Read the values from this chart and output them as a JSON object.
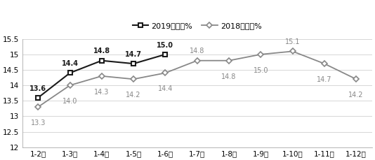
{
  "categories": [
    "1-2月",
    "1-3月",
    "1-4月",
    "1-5月",
    "1-6月",
    "1-7月",
    "1-8月",
    "1-9月",
    "1-10月",
    "1-11月",
    "1-12月"
  ],
  "series_2019": [
    13.6,
    14.4,
    14.8,
    14.7,
    15.0,
    null,
    null,
    null,
    null,
    null,
    null
  ],
  "series_2018": [
    13.3,
    14.0,
    14.3,
    14.2,
    14.4,
    14.8,
    14.8,
    15.0,
    15.1,
    14.7,
    14.2
  ],
  "labels_2019": [
    "13.6",
    "14.4",
    "14.8",
    "14.7",
    "15.0",
    null,
    null,
    null,
    null,
    null,
    null
  ],
  "labels_2018": [
    "13.3",
    "14.0",
    "14.3",
    "14.2",
    "14.4",
    "14.8",
    "14.8",
    "15.0",
    "15.1",
    "14.7",
    "14.2"
  ],
  "color_2019": "#1a1a1a",
  "color_2018": "#888888",
  "ylim": [
    12,
    15.5
  ],
  "yticks": [
    12,
    12.5,
    13,
    13.5,
    14,
    14.5,
    15,
    15.5
  ],
  "legend_2019": "2019年增速%",
  "legend_2018": "2018年增速%",
  "bg_color": "#ffffff",
  "grid_color": "#d0d0d0",
  "label_offsets_2019": [
    6,
    6,
    6,
    6,
    6,
    0,
    0,
    0,
    0,
    0,
    0
  ],
  "label_offsets_2018": [
    -13,
    -13,
    -13,
    -13,
    -13,
    6,
    -13,
    -13,
    6,
    -13,
    -13
  ],
  "label_bold_2019": true
}
